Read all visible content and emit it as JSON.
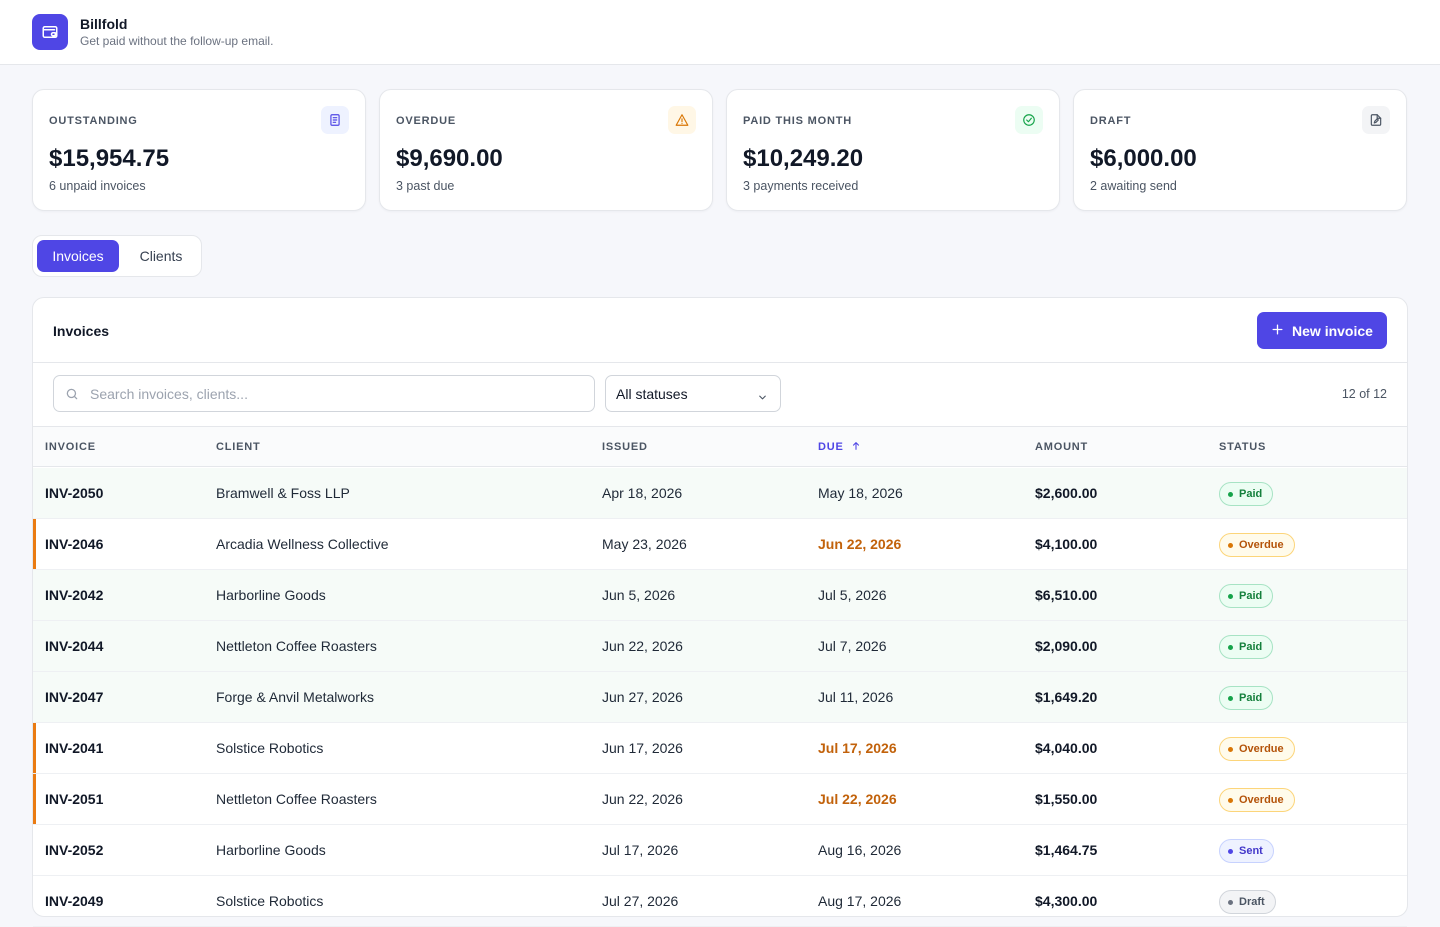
{
  "app": {
    "name": "Billfold",
    "tagline": "Get paid without the follow-up email."
  },
  "icons": {
    "logo": "wallet-icon",
    "search": "search-icon",
    "plus": "plus-icon",
    "chevron": "chevron-down-icon",
    "sort": "arrow-up-icon"
  },
  "colors": {
    "accent": "#4f46e5",
    "overdue": "#ea7b12",
    "paid": "#16a34a"
  },
  "summary": [
    {
      "label": "OUTSTANDING",
      "value": "$15,954.75",
      "sub": "6 unpaid invoices",
      "icon": "document-icon"
    },
    {
      "label": "OVERDUE",
      "value": "$9,690.00",
      "sub": "3 past due",
      "icon": "warning-icon"
    },
    {
      "label": "PAID THIS MONTH",
      "value": "$10,249.20",
      "sub": "3 payments received",
      "icon": "check-circle-icon"
    },
    {
      "label": "DRAFT",
      "value": "$6,000.00",
      "sub": "2 awaiting send",
      "icon": "file-edit-icon"
    }
  ],
  "tabs": [
    {
      "label": "Invoices",
      "active": true
    },
    {
      "label": "Clients",
      "active": false
    }
  ],
  "panel": {
    "title": "Invoices",
    "new_button": "New invoice",
    "search_placeholder": "Search invoices, clients...",
    "status_filter": "All statuses",
    "count": "12 of 12"
  },
  "table": {
    "columns": [
      "INVOICE",
      "CLIENT",
      "ISSUED",
      "DUE",
      "AMOUNT",
      "STATUS"
    ],
    "sorted_column": "DUE",
    "rows": [
      {
        "invoice": "INV-2050",
        "client": "Bramwell & Foss LLP",
        "issued": "Apr 18, 2026",
        "due": "May 18, 2026",
        "amount": "$2,600.00",
        "status": "Paid"
      },
      {
        "invoice": "INV-2046",
        "client": "Arcadia Wellness Collective",
        "issued": "May 23, 2026",
        "due": "Jun 22, 2026",
        "amount": "$4,100.00",
        "status": "Overdue"
      },
      {
        "invoice": "INV-2042",
        "client": "Harborline Goods",
        "issued": "Jun 5, 2026",
        "due": "Jul 5, 2026",
        "amount": "$6,510.00",
        "status": "Paid"
      },
      {
        "invoice": "INV-2044",
        "client": "Nettleton Coffee Roasters",
        "issued": "Jun 22, 2026",
        "due": "Jul 7, 2026",
        "amount": "$2,090.00",
        "status": "Paid"
      },
      {
        "invoice": "INV-2047",
        "client": "Forge & Anvil Metalworks",
        "issued": "Jun 27, 2026",
        "due": "Jul 11, 2026",
        "amount": "$1,649.20",
        "status": "Paid"
      },
      {
        "invoice": "INV-2041",
        "client": "Solstice Robotics",
        "issued": "Jun 17, 2026",
        "due": "Jul 17, 2026",
        "amount": "$4,040.00",
        "status": "Overdue"
      },
      {
        "invoice": "INV-2051",
        "client": "Nettleton Coffee Roasters",
        "issued": "Jun 22, 2026",
        "due": "Jul 22, 2026",
        "amount": "$1,550.00",
        "status": "Overdue"
      },
      {
        "invoice": "INV-2052",
        "client": "Harborline Goods",
        "issued": "Jul 17, 2026",
        "due": "Aug 16, 2026",
        "amount": "$1,464.75",
        "status": "Sent"
      },
      {
        "invoice": "INV-2049",
        "client": "Solstice Robotics",
        "issued": "Jul 27, 2026",
        "due": "Aug 17, 2026",
        "amount": "$4,300.00",
        "status": "Draft"
      }
    ]
  }
}
